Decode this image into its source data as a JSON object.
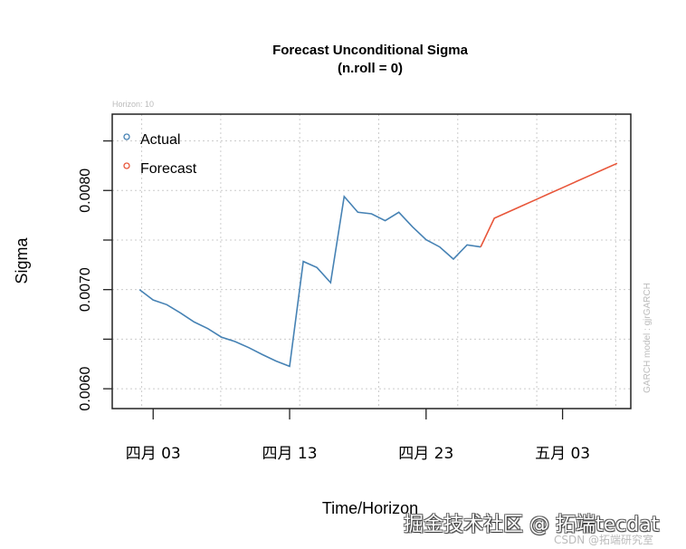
{
  "chart_data": {
    "type": "line",
    "title": "Forecast Unconditional Sigma",
    "subtitle": "(n.roll = 0)",
    "xlabel": "Time/Horizon",
    "ylabel": "Sigma",
    "top_note": "Horizon: 10",
    "side_note": "GARCH model : gjrGARCH",
    "ylim": [
      0.0058,
      0.00877
    ],
    "xlim": [
      "2020-03-31",
      "2020-05-08"
    ],
    "y_ticks": [
      {
        "value": 0.006,
        "label": "0.0060"
      },
      {
        "value": 0.0065,
        "label": ""
      },
      {
        "value": 0.007,
        "label": "0.0070"
      },
      {
        "value": 0.0075,
        "label": ""
      },
      {
        "value": 0.008,
        "label": "0.0080"
      },
      {
        "value": 0.0085,
        "label": ""
      }
    ],
    "x_ticks": [
      {
        "date": "2020-04-03",
        "label": "四月 03"
      },
      {
        "date": "2020-04-13",
        "label": "四月 13"
      },
      {
        "date": "2020-04-23",
        "label": "四月 23"
      },
      {
        "date": "2020-05-03",
        "label": "五月 03"
      }
    ],
    "grid": true,
    "legend": {
      "position": "top-left",
      "entries": [
        {
          "label": "Actual",
          "color": "#4682b4"
        },
        {
          "label": "Forecast",
          "color": "#e8563a"
        }
      ]
    },
    "series": [
      {
        "name": "Actual",
        "color": "#4682b4",
        "x": [
          "2020-04-02",
          "2020-04-03",
          "2020-04-04",
          "2020-04-05",
          "2020-04-06",
          "2020-04-07",
          "2020-04-08",
          "2020-04-09",
          "2020-04-10",
          "2020-04-11",
          "2020-04-12",
          "2020-04-13",
          "2020-04-14",
          "2020-04-15",
          "2020-04-16",
          "2020-04-17",
          "2020-04-18",
          "2020-04-19",
          "2020-04-20",
          "2020-04-21",
          "2020-04-22",
          "2020-04-23",
          "2020-04-24",
          "2020-04-25",
          "2020-04-26",
          "2020-04-27"
        ],
        "values": [
          0.007,
          0.006896,
          0.006848,
          0.006765,
          0.006674,
          0.006607,
          0.006521,
          0.006476,
          0.006415,
          0.006345,
          0.00628,
          0.006226,
          0.007284,
          0.007223,
          0.00707,
          0.007939,
          0.00778,
          0.007765,
          0.007695,
          0.00778,
          0.007634,
          0.007503,
          0.00743,
          0.007308,
          0.007451,
          0.00743
        ]
      },
      {
        "name": "Forecast",
        "color": "#e8563a",
        "x": [
          "2020-04-27",
          "2020-04-28",
          "2020-04-29",
          "2020-04-30",
          "2020-05-01",
          "2020-05-02",
          "2020-05-03",
          "2020-05-04",
          "2020-05-05",
          "2020-05-06",
          "2020-05-07"
        ],
        "values": [
          0.00743,
          0.00772,
          0.007782,
          0.007843,
          0.007905,
          0.007967,
          0.008028,
          0.00809,
          0.008151,
          0.008213,
          0.008274
        ]
      }
    ]
  },
  "watermark": {
    "main": "掘金技术社区 @ 拓端tecdat",
    "sub": "CSDN @拓端研究室"
  }
}
